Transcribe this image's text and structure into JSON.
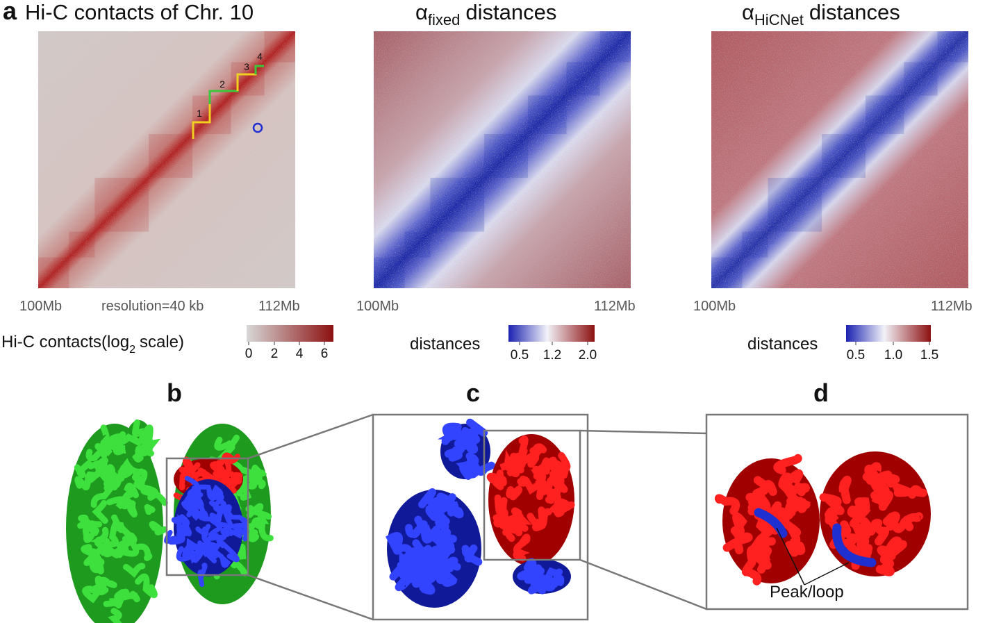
{
  "panel_a": {
    "letter": "a",
    "title": "Hi-C contacts of Chr. 10",
    "axis_start": "100Mb",
    "resolution": "resolution=40 kb",
    "axis_end": "112Mb",
    "step_labels": [
      "1",
      "2",
      "3",
      "4"
    ],
    "colorbar": {
      "label_pre": "Hi-C contacts(log",
      "label_sub": "2",
      "label_post": "scale)",
      "ticks": [
        "0",
        "2",
        "4",
        "6"
      ]
    }
  },
  "panel_fixed": {
    "title_symbol": "α",
    "title_sub": "fixed",
    "title_rest": "distances",
    "axis_start": "100Mb",
    "axis_end": "112Mb",
    "colorbar": {
      "label": "distances",
      "ticks": [
        "0.5",
        "1.2",
        "2.0"
      ]
    }
  },
  "panel_hicnet": {
    "title_symbol": "α",
    "title_sub": "HiCNet",
    "title_rest": "distances",
    "axis_start": "100Mb",
    "axis_end": "112Mb",
    "colorbar": {
      "label": "distances",
      "ticks": [
        "0.5",
        "1.0",
        "1.5"
      ]
    }
  },
  "panel_b": {
    "letter": "b"
  },
  "panel_c": {
    "letter": "c"
  },
  "panel_d": {
    "letter": "d",
    "annotation": "Peak/loop"
  }
}
